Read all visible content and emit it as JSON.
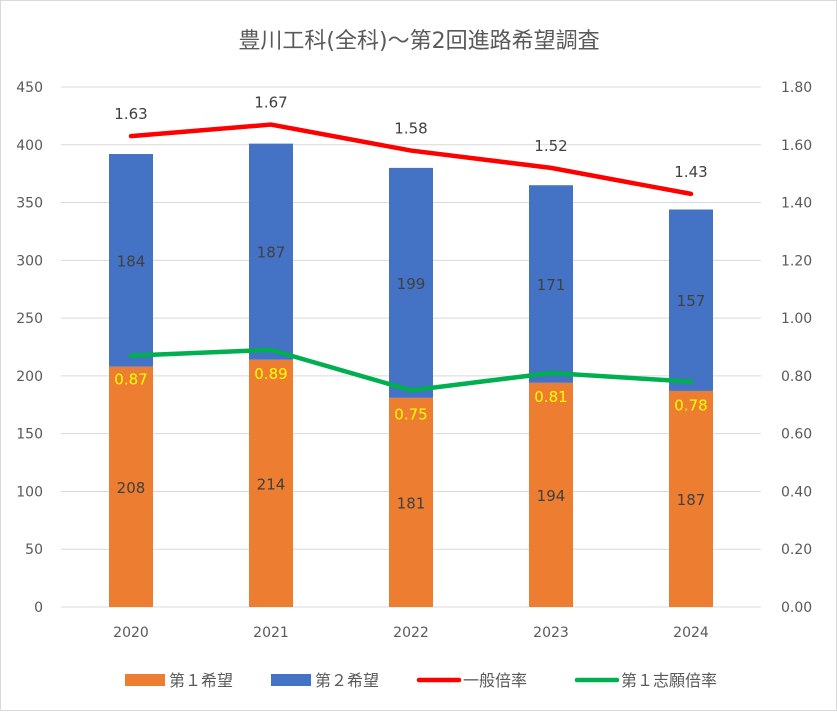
{
  "chart_data": {
    "type": "bar",
    "subtype": "stacked-bar-with-secondary-lines",
    "title": "豊川工科(全科)～第2回進路希望調査",
    "categories": [
      "2020",
      "2021",
      "2022",
      "2023",
      "2024"
    ],
    "series": [
      {
        "name": "第１希望",
        "kind": "bar",
        "axis": "left",
        "color": "#ED7D31",
        "values": [
          208,
          214,
          181,
          194,
          187
        ],
        "labels": [
          "208",
          "214",
          "181",
          "194",
          "187"
        ]
      },
      {
        "name": "第２希望",
        "kind": "bar",
        "axis": "left",
        "color": "#4472C4",
        "values": [
          184,
          187,
          199,
          171,
          157
        ],
        "labels": [
          "184",
          "187",
          "199",
          "171",
          "157"
        ]
      },
      {
        "name": "一般倍率",
        "kind": "line",
        "axis": "right",
        "color": "#FF0000",
        "values": [
          1.63,
          1.67,
          1.58,
          1.52,
          1.43
        ],
        "labels": [
          "1.63",
          "1.67",
          "1.58",
          "1.52",
          "1.43"
        ]
      },
      {
        "name": "第１志願倍率",
        "kind": "line",
        "axis": "right",
        "color": "#00B050",
        "values": [
          0.87,
          0.89,
          0.75,
          0.81,
          0.78
        ],
        "labels": [
          "0.87",
          "0.89",
          "0.75",
          "0.81",
          "0.78"
        ],
        "label_color": "#FFFF00"
      }
    ],
    "y_left": {
      "min": 0,
      "max": 450,
      "step": 50,
      "ticks": [
        "0",
        "50",
        "100",
        "150",
        "200",
        "250",
        "300",
        "350",
        "400",
        "450"
      ]
    },
    "y_right": {
      "min": 0,
      "max": 1.8,
      "step": 0.2,
      "ticks": [
        "0.00",
        "0.20",
        "0.40",
        "0.60",
        "0.80",
        "1.00",
        "1.20",
        "1.40",
        "1.60",
        "1.80"
      ]
    },
    "xlabel": "",
    "ylabel": "",
    "grid": true,
    "legend": "bottom"
  }
}
